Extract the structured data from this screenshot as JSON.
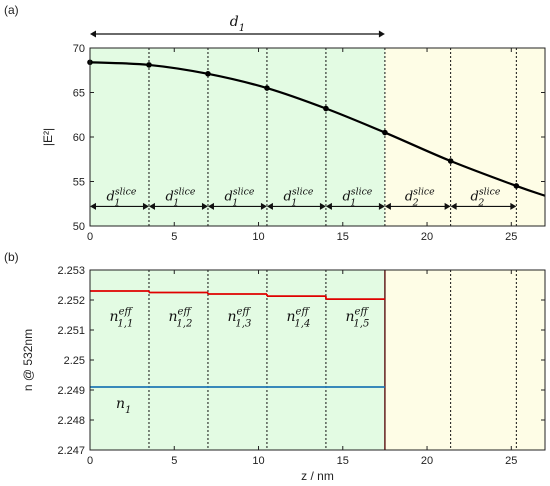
{
  "colors": {
    "green_fill": "#e3fbe3",
    "yellow_fill": "#fefde6",
    "curve": "#000000",
    "red_line": "#e00000",
    "blue_line": "#1f77b4"
  },
  "chart_data": [
    {
      "panel": "(a)",
      "type": "line",
      "xlabel": "",
      "ylabel": "|E²|",
      "xlim": [
        0,
        27
      ],
      "ylim": [
        50,
        70
      ],
      "xticks": [
        "0",
        "5",
        "10",
        "15",
        "20",
        "25"
      ],
      "yticks": [
        "50",
        "55",
        "60",
        "65",
        "70"
      ],
      "regions": [
        {
          "from": 0,
          "to": 17.5,
          "fill": "green"
        },
        {
          "from": 17.5,
          "to": 27,
          "fill": "yellow"
        }
      ],
      "slice_boundaries": [
        3.5,
        7,
        10.5,
        14,
        17.5,
        21.4,
        25.3
      ],
      "series": [
        {
          "x": [
            0,
            3.5,
            7,
            10.5,
            14,
            17.5,
            21.4,
            25.3,
            27
          ],
          "y": [
            68.4,
            68.1,
            67.1,
            65.5,
            63.2,
            60.5,
            57.3,
            54.5,
            53.4
          ],
          "markers_x": [
            0,
            3.5,
            7,
            10.5,
            14,
            17.5,
            21.4,
            25.3
          ]
        }
      ],
      "annotations": {
        "d1": {
          "label_main": "d",
          "label_sub": "1",
          "from": 0,
          "to": 17.5
        },
        "slices": [
          {
            "from": 0,
            "to": 3.5,
            "main": "d",
            "sub": "1",
            "sup": "slice"
          },
          {
            "from": 3.5,
            "to": 7,
            "main": "d",
            "sub": "1",
            "sup": "slice"
          },
          {
            "from": 7,
            "to": 10.5,
            "main": "d",
            "sub": "1",
            "sup": "slice"
          },
          {
            "from": 10.5,
            "to": 14,
            "main": "d",
            "sub": "1",
            "sup": "slice"
          },
          {
            "from": 14,
            "to": 17.5,
            "main": "d",
            "sub": "1",
            "sup": "slice"
          },
          {
            "from": 17.5,
            "to": 21.4,
            "main": "d",
            "sub": "2",
            "sup": "slice"
          },
          {
            "from": 21.4,
            "to": 25.3,
            "main": "d",
            "sub": "2",
            "sup": "slice"
          }
        ]
      }
    },
    {
      "panel": "(b)",
      "type": "line",
      "xlabel": "z / nm",
      "ylabel": "n @ 532nm",
      "xlim": [
        0,
        27
      ],
      "ylim": [
        2.247,
        2.253
      ],
      "xticks": [
        "0",
        "5",
        "10",
        "15",
        "20",
        "25"
      ],
      "yticks": [
        "2.247",
        "2.248",
        "2.249",
        "2.25",
        "2.251",
        "2.252",
        "2.253"
      ],
      "regions": [
        {
          "from": 0,
          "to": 17.5,
          "fill": "green"
        },
        {
          "from": 17.5,
          "to": 27,
          "fill": "yellow"
        }
      ],
      "slice_boundaries": [
        3.5,
        7,
        10.5,
        14,
        17.5,
        21.4,
        25.3
      ],
      "series": [
        {
          "color": "red",
          "steps": [
            {
              "from": 0,
              "to": 3.5,
              "y": 2.2523
            },
            {
              "from": 3.5,
              "to": 7,
              "y": 2.25225
            },
            {
              "from": 7,
              "to": 10.5,
              "y": 2.2522
            },
            {
              "from": 10.5,
              "to": 14,
              "y": 2.25213
            },
            {
              "from": 14,
              "to": 17.5,
              "y": 2.25203
            }
          ]
        },
        {
          "color": "blue",
          "steps": [
            {
              "from": 0,
              "to": 17.5,
              "y": 2.2491
            }
          ]
        }
      ],
      "annotations": {
        "neff": [
          {
            "from": 0,
            "to": 3.5,
            "main": "n",
            "sub": "1,1",
            "sup": "eff"
          },
          {
            "from": 3.5,
            "to": 7,
            "main": "n",
            "sub": "1,2",
            "sup": "eff"
          },
          {
            "from": 7,
            "to": 10.5,
            "main": "n",
            "sub": "1,3",
            "sup": "eff"
          },
          {
            "from": 10.5,
            "to": 14,
            "main": "n",
            "sub": "1,4",
            "sup": "eff"
          },
          {
            "from": 14,
            "to": 17.5,
            "main": "n",
            "sub": "1,5",
            "sup": "eff"
          }
        ],
        "n1": {
          "main": "n",
          "sub": "1",
          "x": 2
        }
      }
    }
  ]
}
